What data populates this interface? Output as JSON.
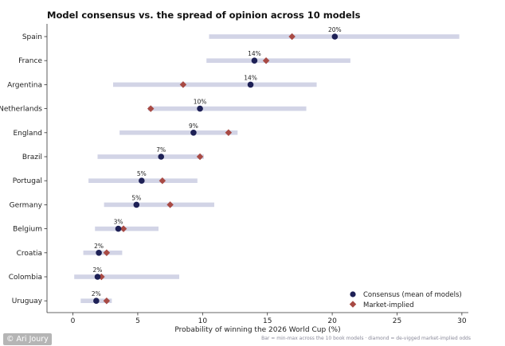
{
  "chart_data": {
    "type": "range-dot",
    "title": "Model consensus vs. the spread of opinion across 10 models",
    "xlabel": "Probability of winning the 2026 World Cup (%)",
    "ylabel": "",
    "xlim": [
      -2,
      30.5
    ],
    "xticks": [
      0,
      5,
      10,
      15,
      20,
      25,
      30
    ],
    "grid": false,
    "legend_position": "bottom-right",
    "colors": {
      "consensus": "#1e2156",
      "market": "#a84a44",
      "range": "#d2d4e6"
    },
    "categories": [
      "Spain",
      "France",
      "Argentina",
      "Netherlands",
      "England",
      "Brazil",
      "Portugal",
      "Germany",
      "Belgium",
      "Croatia",
      "Colombia",
      "Uruguay"
    ],
    "series": [
      {
        "name": "Consensus (mean of models)",
        "marker": "circle",
        "values": [
          20.2,
          14.0,
          13.7,
          9.8,
          9.3,
          6.8,
          5.3,
          4.9,
          3.5,
          2.0,
          1.9,
          1.8
        ],
        "labels": [
          "20%",
          "14%",
          "14%",
          "10%",
          "9%",
          "7%",
          "5%",
          "5%",
          "3%",
          "2%",
          "2%",
          "2%"
        ]
      },
      {
        "name": "Market-implied",
        "marker": "diamond",
        "values": [
          16.9,
          14.9,
          8.5,
          6.0,
          12.0,
          9.8,
          6.9,
          7.5,
          3.9,
          2.6,
          2.2,
          2.6
        ]
      }
    ],
    "ranges": [
      [
        10.5,
        29.8
      ],
      [
        10.3,
        21.4
      ],
      [
        3.1,
        18.8
      ],
      [
        5.8,
        18.0
      ],
      [
        3.6,
        12.7
      ],
      [
        1.9,
        10.1
      ],
      [
        1.2,
        9.6
      ],
      [
        2.4,
        10.9
      ],
      [
        1.7,
        6.6
      ],
      [
        0.8,
        3.8
      ],
      [
        0.1,
        8.2
      ],
      [
        0.6,
        3.0
      ]
    ],
    "footnote": "Bar = min-max across the 10 book models · diamond = de-vigged market-implied odds"
  },
  "watermark": "© Ari Joury"
}
